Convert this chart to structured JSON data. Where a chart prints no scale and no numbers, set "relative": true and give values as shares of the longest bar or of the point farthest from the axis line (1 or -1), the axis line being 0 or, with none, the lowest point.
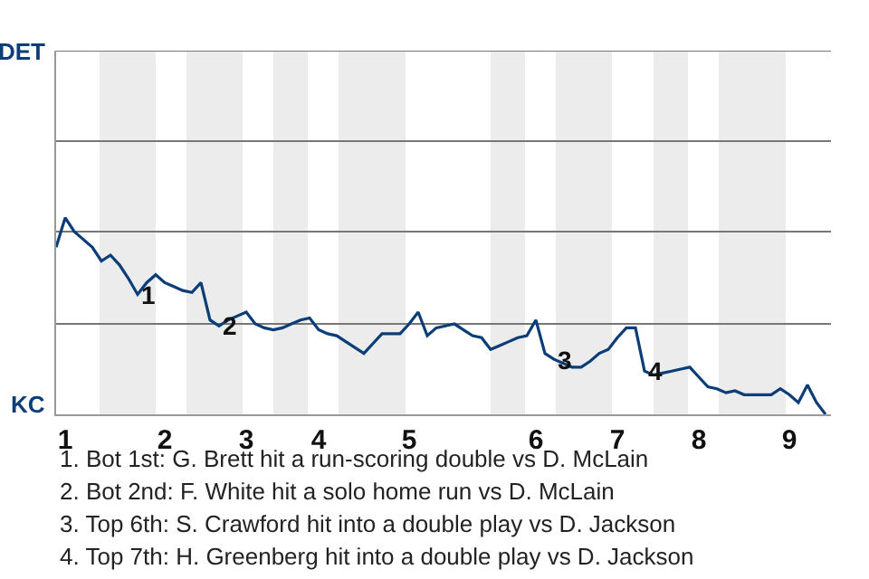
{
  "chart_data": {
    "type": "line",
    "relative": true,
    "categories": [
      null,
      "1",
      null,
      null,
      null,
      null,
      null,
      null,
      null,
      null,
      null,
      null,
      "2",
      null,
      null,
      null,
      null,
      null,
      null,
      null,
      null,
      "3",
      null,
      null,
      null,
      null,
      null,
      null,
      null,
      "4",
      null,
      null,
      null,
      null,
      null,
      null,
      null,
      null,
      null,
      "5",
      null,
      null,
      null,
      null,
      null,
      null,
      null,
      null,
      null,
      null,
      null,
      null,
      null,
      "6",
      null,
      null,
      null,
      null,
      null,
      null,
      null,
      null,
      "7",
      null,
      null,
      null,
      null,
      null,
      null,
      null,
      null,
      "8",
      null,
      null,
      null,
      null,
      null,
      null,
      null,
      null,
      null,
      "9",
      null,
      null,
      null,
      null
    ],
    "series": [
      {
        "color": "#0b3d78",
        "values": [
          0.85,
          1,
          0.93,
          0.89,
          0.85,
          0.78,
          0.81,
          0.76,
          0.69,
          0.61,
          0.67,
          0.71,
          0.67,
          0.65,
          0.63,
          0.62,
          0.67,
          0.48,
          0.45,
          0.48,
          0.5,
          0.52,
          0.46,
          0.44,
          0.43,
          0.44,
          0.46,
          0.48,
          0.49,
          0.43,
          0.41,
          0.4,
          0.37,
          0.34,
          0.31,
          0.36,
          0.41,
          0.41,
          0.41,
          0.46,
          0.52,
          0.4,
          0.44,
          0.45,
          0.46,
          0.43,
          0.4,
          0.39,
          0.33,
          0.35,
          0.37,
          0.39,
          0.4,
          0.48,
          0.31,
          0.28,
          0.26,
          0.24,
          0.24,
          0.27,
          0.31,
          0.33,
          0.39,
          0.44,
          0.44,
          0.22,
          0.2,
          0.21,
          0.22,
          0.23,
          0.24,
          0.19,
          0.14,
          0.13,
          0.11,
          0.12,
          0.1,
          0.1,
          0.1,
          0.1,
          0.13,
          0.1,
          0.06,
          0.15,
          0.06,
          0
        ]
      }
    ],
    "ref_lines": [
      {
        "axis": "y",
        "value": 0.46,
        "color": "#777777"
      },
      {
        "axis": "y",
        "value": 0.93,
        "color": "#777777"
      },
      {
        "axis": "y",
        "value": 1.39,
        "color": "#777777"
      },
      {
        "axis": "y",
        "value": 1.85,
        "color": "#777777"
      }
    ],
    "annotations": [
      {
        "text": "1",
        "y": 0.61
      },
      {
        "text": "2",
        "y": 0.45
      },
      {
        "text": "3",
        "y": 0.28
      },
      {
        "text": "4",
        "y": 0.22
      },
      "DET",
      "KC",
      "1. Bot 1st: G. Brett hit a run-scoring double vs D. McLain",
      "2. Bot 2nd: F. White hit a solo home run vs D. McLain",
      "3. Top 6th: S. Crawford hit into a double play vs D. Jackson",
      "4. Top 7th: H. Greenberg hit into a double play vs D. Jackson"
    ]
  }
}
